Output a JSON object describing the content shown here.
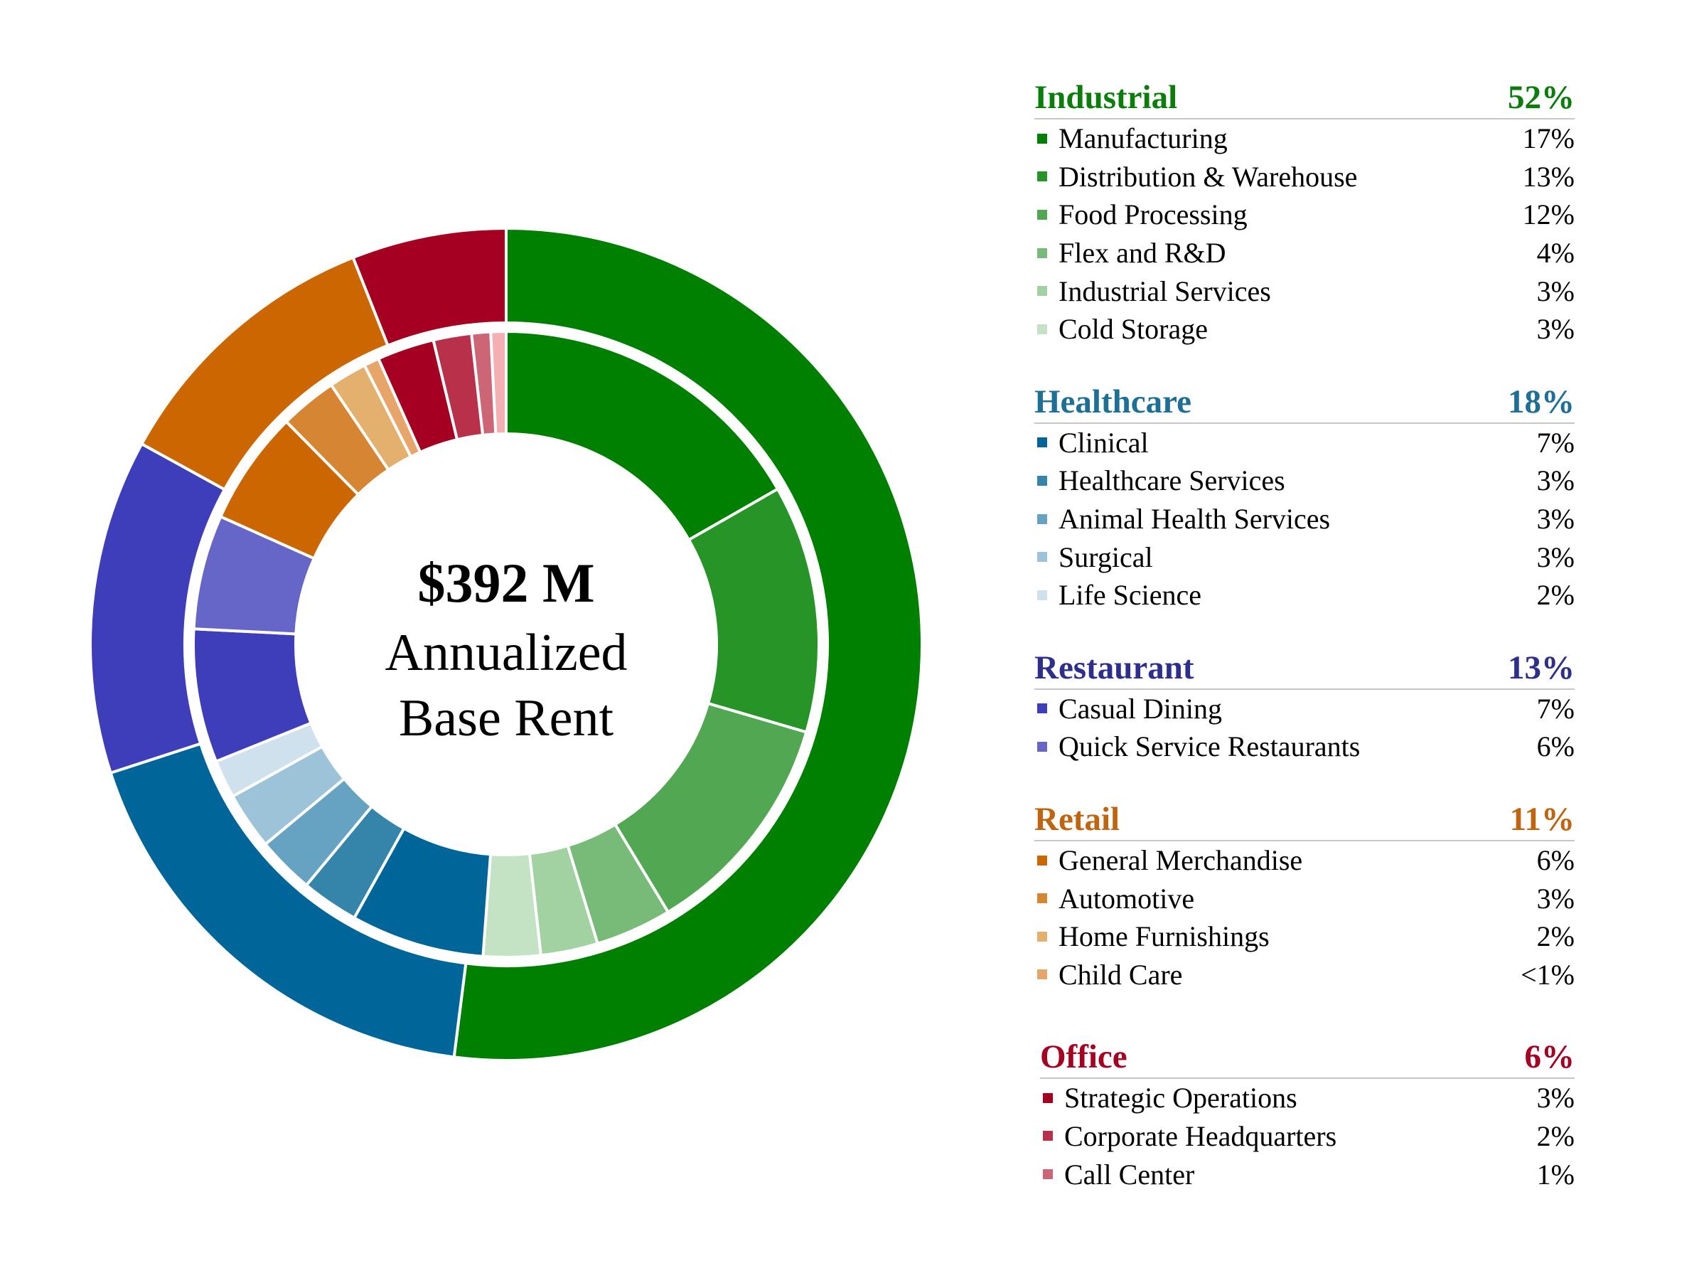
{
  "chart_data": {
    "type": "donut",
    "center": {
      "amount": "$392 M",
      "caption_line1": "Annualized",
      "caption_line2": "Base Rent"
    },
    "outer_ring": [
      {
        "name": "Industrial",
        "value": 52,
        "color": "#008000"
      },
      {
        "name": "Healthcare",
        "value": 18,
        "color": "#006699"
      },
      {
        "name": "Restaurant",
        "value": 13,
        "color": "#3E3EBB"
      },
      {
        "name": "Retail",
        "value": 11,
        "color": "#CC6600"
      },
      {
        "name": "Office",
        "value": 6,
        "color": "#A50021"
      }
    ],
    "groups": [
      {
        "label": "Industrial",
        "pct_label": "52%",
        "color": "#0A7D0A",
        "items": [
          {
            "label": "Manufacturing",
            "pct_label": "17%",
            "value": 17,
            "color": "#008000"
          },
          {
            "label": "Distribution & Warehouse",
            "pct_label": "13%",
            "value": 13,
            "color": "#269426"
          },
          {
            "label": "Food Processing",
            "pct_label": "12%",
            "value": 12,
            "color": "#52A852"
          },
          {
            "label": "Flex and R&D",
            "pct_label": "4%",
            "value": 4,
            "color": "#78BA78"
          },
          {
            "label": "Industrial Services",
            "pct_label": "3%",
            "value": 3,
            "color": "#A2D1A2"
          },
          {
            "label": "Cold Storage",
            "pct_label": "3%",
            "value": 3,
            "color": "#C4E2C4"
          }
        ]
      },
      {
        "label": "Healthcare",
        "pct_label": "18%",
        "color": "#1D6F96",
        "items": [
          {
            "label": "Clinical",
            "pct_label": "7%",
            "value": 7,
            "color": "#006699"
          },
          {
            "label": "Healthcare Services",
            "pct_label": "3%",
            "value": 3,
            "color": "#3585AB"
          },
          {
            "label": "Animal Health Services",
            "pct_label": "3%",
            "value": 3,
            "color": "#66A2C1"
          },
          {
            "label": "Surgical",
            "pct_label": "3%",
            "value": 3,
            "color": "#9DC3D8"
          },
          {
            "label": "Life Science",
            "pct_label": "2%",
            "value": 2,
            "color": "#CFE1EC"
          }
        ]
      },
      {
        "label": "Restaurant",
        "pct_label": "13%",
        "color": "#2E2E8C",
        "items": [
          {
            "label": "Casual Dining",
            "pct_label": "7%",
            "value": 7,
            "color": "#3E3EBB"
          },
          {
            "label": "Quick Service Restaurants",
            "pct_label": "6%",
            "value": 6,
            "color": "#6666C8"
          }
        ]
      },
      {
        "label": "Retail",
        "pct_label": "11%",
        "color": "#C06410",
        "items": [
          {
            "label": "General Merchandise",
            "pct_label": "6%",
            "value": 6,
            "color": "#CC6600"
          },
          {
            "label": "Automotive",
            "pct_label": "3%",
            "value": 3,
            "color": "#D68533"
          },
          {
            "label": "Home Furnishings",
            "pct_label": "2%",
            "value": 2,
            "color": "#E3B06E"
          },
          {
            "label": "Child Care",
            "pct_label": "<1%",
            "value": 0.8,
            "color": "#E8A56A"
          }
        ]
      },
      {
        "label": "Office",
        "pct_label": "6%",
        "color": "#A50021",
        "items": [
          {
            "label": "Strategic Operations",
            "pct_label": "3%",
            "value": 3,
            "color": "#A50021"
          },
          {
            "label": "Corporate Headquarters",
            "pct_label": "2%",
            "value": 2,
            "color": "#B8304A"
          },
          {
            "label": "Call Center",
            "pct_label": "1%",
            "value": 1,
            "color": "#CC6677"
          }
        ]
      }
    ],
    "inner_extra_segment": {
      "value": 0.8,
      "color": "#F4AFB4"
    }
  }
}
